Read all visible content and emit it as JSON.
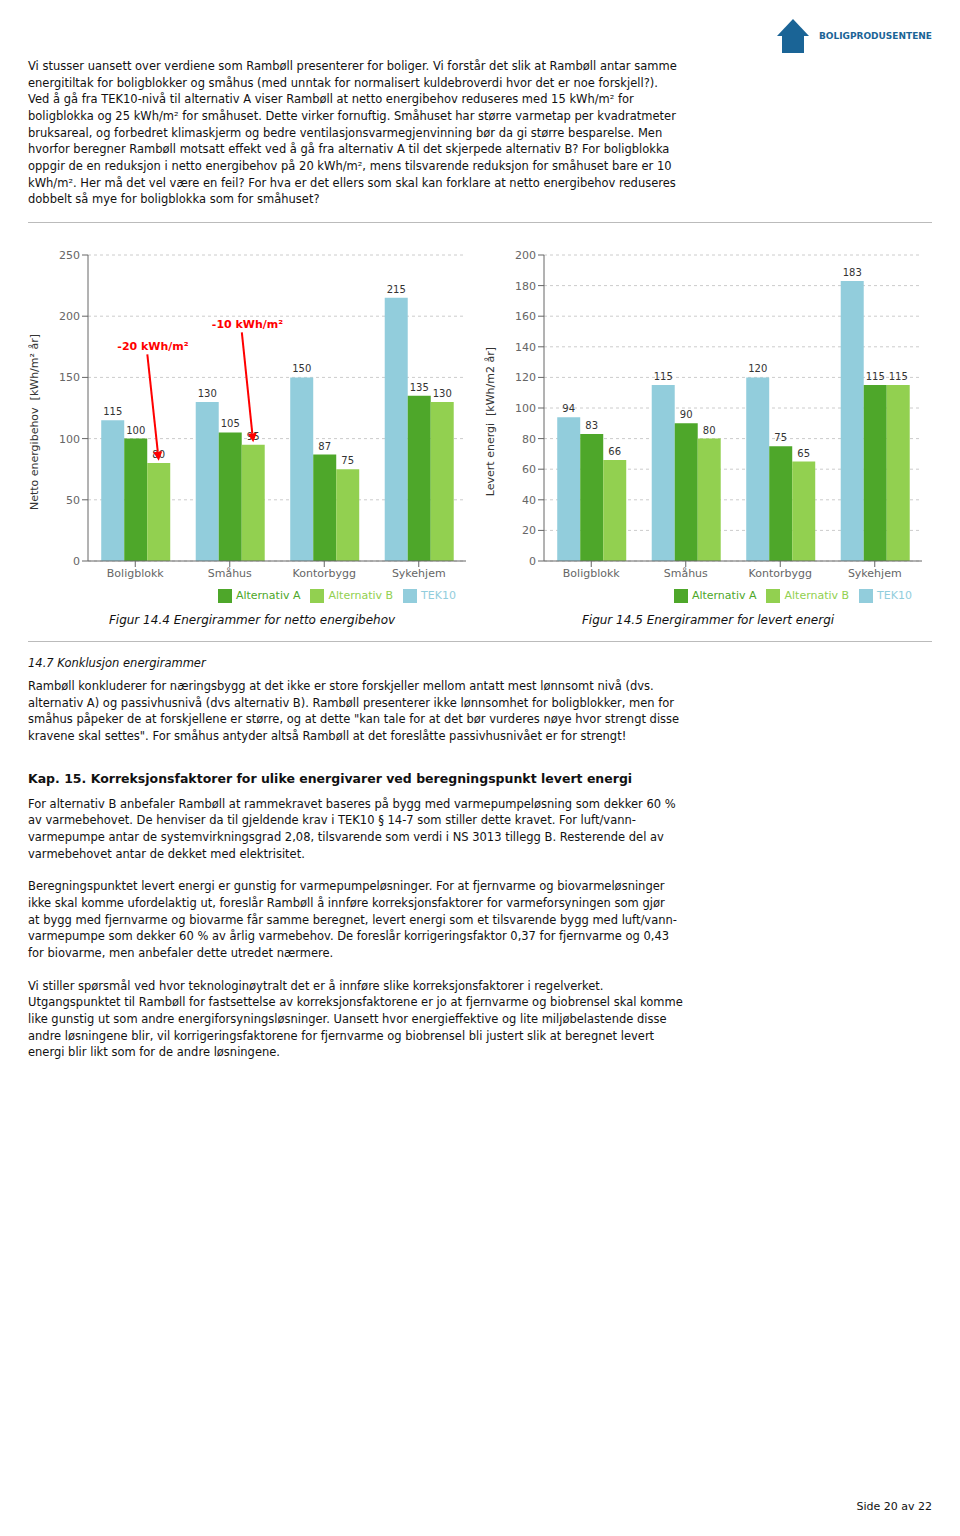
{
  "chart_data": [
    {
      "type": "bar",
      "title": "Figur 14.4 Energirammer for netto energibehov",
      "ylabel": "Netto energibehov  [kWh/m² år]",
      "categories": [
        "Boligblokk",
        "Småhus",
        "Kontorbygg",
        "Sykehjem"
      ],
      "series": [
        {
          "name": "TEK10",
          "color": "#92CDDC",
          "values": [
            115,
            130,
            150,
            215
          ]
        },
        {
          "name": "Alternativ A",
          "color": "#4EA72A",
          "values": [
            100,
            105,
            87,
            135
          ]
        },
        {
          "name": "Alternativ B",
          "color": "#92D050",
          "values": [
            80,
            95,
            75,
            130
          ]
        }
      ],
      "ylim": [
        0,
        250
      ],
      "yticks": [
        0,
        50,
        100,
        150,
        200,
        250
      ],
      "grid": true,
      "legend": "lower right",
      "data_labels": true,
      "annotations": [
        {
          "text": "-20 kWh/m²",
          "category": "Boligblokk",
          "series": "Alternativ B",
          "y": 82,
          "text_y": 172,
          "color": "red"
        },
        {
          "text": "-10 kWh/m²",
          "category": "Småhus",
          "series": "Alternativ B",
          "y": 97,
          "text_y": 190,
          "color": "red"
        }
      ]
    },
    {
      "type": "bar",
      "title": "Figur 14.5 Energirammer for levert energi",
      "ylabel": "Levert energi  [kWh/m2 år]",
      "categories": [
        "Boligblokk",
        "Småhus",
        "Kontorbygg",
        "Sykehjem"
      ],
      "series": [
        {
          "name": "TEK10",
          "color": "#92CDDC",
          "values": [
            94,
            115,
            120,
            183
          ]
        },
        {
          "name": "Alternativ A",
          "color": "#4EA72A",
          "values": [
            83,
            90,
            75,
            115
          ]
        },
        {
          "name": "Alternativ B",
          "color": "#92D050",
          "values": [
            66,
            80,
            65,
            115
          ]
        }
      ],
      "ylim": [
        0,
        200
      ],
      "yticks": [
        0,
        20,
        40,
        60,
        80,
        100,
        120,
        140,
        160,
        180,
        200
      ],
      "grid": true,
      "legend": "lower right",
      "data_labels": true
    }
  ],
  "logo": {
    "text": "BOLIGPRODUSENTENE",
    "color": "#1a6496"
  },
  "top_text": [
    "Vi stusser uansett over verdiene som Rambøll presenterer for boliger. Vi forstår det slik at Rambøll antar samme",
    "energitiltak for boligblokker og småhus (med unntak for normalisert kuldebroverdi hvor det er noe forskjell?).",
    "Ved å gå fra TEK10-nivå til alternativ A viser Rambøll at netto energibehov reduseres med 15 kWh/m² for",
    "boligblokka og 25 kWh/m² for småhuset. Dette virker fornuftig. Småhuset har større varmetap per kvadratmeter",
    "bruksareal, og forbedret klimaskjerm og bedre ventilasjonsvarmegjenvinning bør da gi større besparelse. Men",
    "hvorfor beregner Rambøll motsatt effekt ved å gå fra alternativ A til det skjerpede alternativ B? For boligblokka",
    "oppgir de en reduksjon i netto energibehov på 20 kWh/m², mens tilsvarende reduksjon for småhuset bare er 10",
    "kWh/m². Her må det vel være en feil? For hva er det ellers som skal kan forklare at netto energibehov reduseres",
    "dobbelt så mye for boligblokka som for småhuset?"
  ],
  "section_heading": "14.7 Konklusjon energirammer",
  "section_text": [
    "Rambøll konkluderer for næringsbygg at det ikke er store forskjeller mellom antatt mest lønnsomt nivå (dvs.",
    "alternativ A) og passivhusnivå (dvs alternativ B). Rambøll presenterer ikke lønnsomhet for boligblokker, men for",
    "småhus påpeker de at forskjellene er større, og at dette \"kan tale for at det bør vurderes nøye hvor strengt disse",
    "kravene skal settes\". For småhus antyder altså Rambøll at det foreslåtte passivhusnivået er for strengt!"
  ],
  "chapter_heading": "Kap. 15. Korreksjonsfaktorer for ulike energivarer ved beregningspunkt levert energi",
  "chapter_paragraphs": [
    [
      "For alternativ B anbefaler Rambøll at rammekravet baseres på bygg med varmepumpeløsning som dekker 60 %",
      "av varmebehovet. De henviser da til gjeldende krav i TEK10 § 14-7 som stiller dette kravet. For luft/vann-",
      "varmepumpe antar de systemvirkningsgrad 2,08, tilsvarende som verdi i NS 3013 tillegg B. Resterende del av",
      "varmebehovet antar de dekket med elektrisitet."
    ],
    [
      "Beregningspunktet levert energi er gunstig for varmepumpeløsninger. For at fjernvarme og biovarmeløsninger",
      "ikke skal komme ufordelaktig ut, foreslår Rambøll å innføre korreksjonsfaktorer for varmeforsyningen som gjør",
      "at bygg med fjernvarme og biovarme får samme beregnet, levert energi som et tilsvarende bygg med luft/vann-",
      "varmepumpe som dekker 60 % av årlig varmebehov. De foreslår korrigeringsfaktor 0,37 for fjernvarme og 0,43",
      "for biovarme, men anbefaler dette utredet nærmere."
    ],
    [
      "Vi stiller spørsmål ved hvor teknologinøytralt det er å innføre slike korreksjonsfaktorer i regelverket.",
      "Utgangspunktet til Rambøll for fastsettelse av korreksjonsfaktorene er jo at fjernvarme og biobrensel skal komme",
      "like gunstig ut som andre energiforsyningsløsninger. Uansett hvor energieffektive og lite miljøbelastende disse",
      "andre løsningene blir, vil korrigeringsfaktorene for fjernvarme og biobrensel bli justert slik at beregnet levert",
      "energi blir likt som for de andre løsningene."
    ]
  ],
  "page_text": "Side 20 av 22"
}
